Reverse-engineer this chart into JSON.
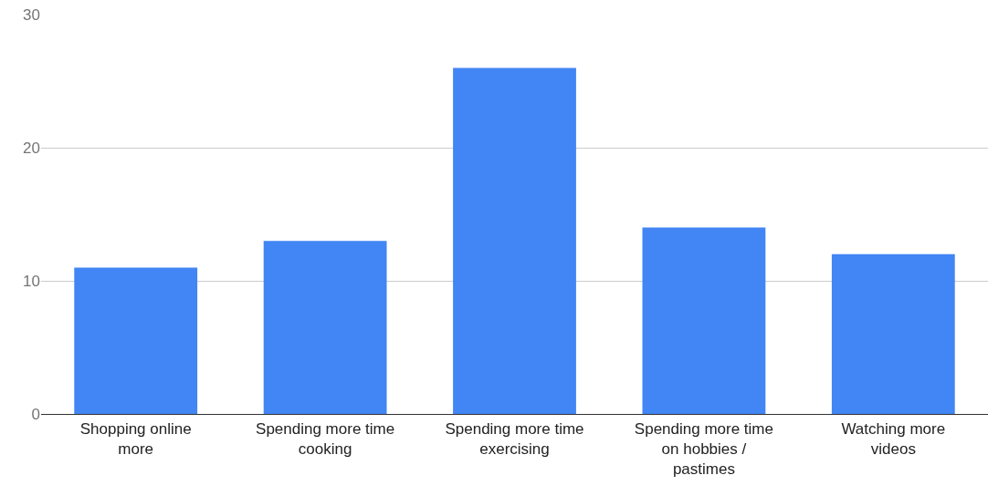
{
  "chart_data": {
    "type": "bar",
    "categories": [
      "Shopping online more",
      "Spending more time cooking",
      "Spending more time exercising",
      "Spending more time on hobbies / pastimes",
      "Watching more videos"
    ],
    "values": [
      11,
      13,
      26,
      14,
      12
    ],
    "color": "#4285f4",
    "ylim": [
      0,
      30
    ],
    "yticks": [
      0,
      10,
      20,
      30
    ],
    "grid": "y"
  }
}
